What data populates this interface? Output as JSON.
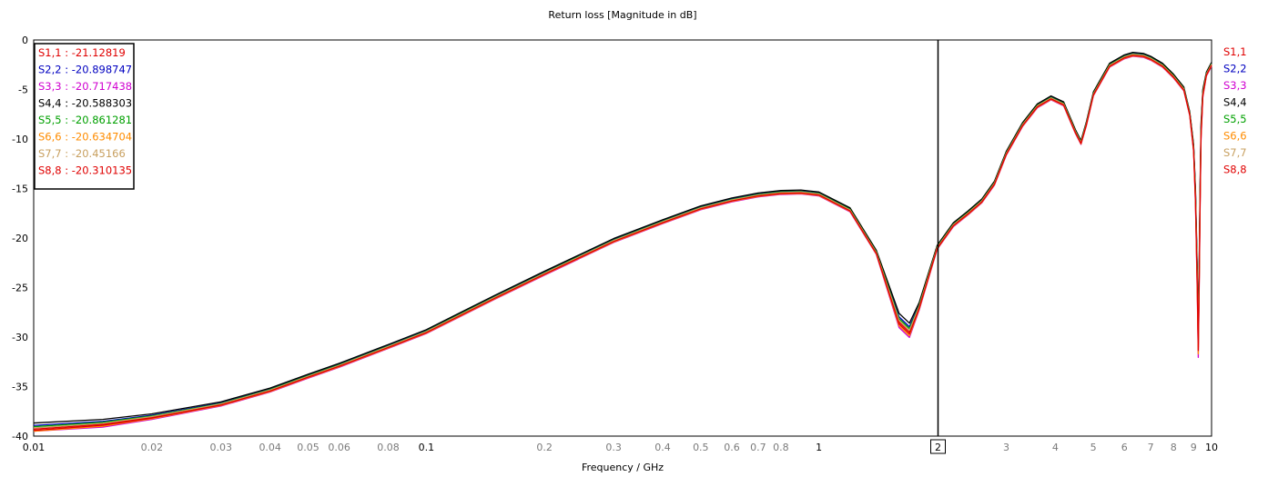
{
  "chart_data": {
    "type": "line",
    "title": "Return loss [Magnitude in dB]",
    "xlabel": "Frequency / GHz",
    "ylabel": "",
    "x_scale": "log",
    "xlim": [
      0.01,
      10
    ],
    "ylim": [
      -40,
      0
    ],
    "grid": true,
    "x_ticks_major": [
      {
        "v": 0.01,
        "label": "0.01"
      },
      {
        "v": 0.1,
        "label": "0.1"
      },
      {
        "v": 1,
        "label": "1"
      },
      {
        "v": 10,
        "label": "10"
      }
    ],
    "x_ticks_minor": [
      {
        "v": 0.02,
        "label": "0.02"
      },
      {
        "v": 0.03,
        "label": "0.03"
      },
      {
        "v": 0.04,
        "label": "0.04"
      },
      {
        "v": 0.05,
        "label": "0.05"
      },
      {
        "v": 0.06,
        "label": "0.06"
      },
      {
        "v": 0.08,
        "label": "0.08"
      },
      {
        "v": 0.2,
        "label": "0.2"
      },
      {
        "v": 0.3,
        "label": "0.3"
      },
      {
        "v": 0.4,
        "label": "0.4"
      },
      {
        "v": 0.5,
        "label": "0.5"
      },
      {
        "v": 0.6,
        "label": "0.6"
      },
      {
        "v": 0.7,
        "label": "0.7"
      },
      {
        "v": 0.8,
        "label": "0.8"
      },
      {
        "v": 3,
        "label": "3"
      },
      {
        "v": 4,
        "label": "4"
      },
      {
        "v": 5,
        "label": "5"
      },
      {
        "v": 6,
        "label": "6"
      },
      {
        "v": 7,
        "label": "7"
      },
      {
        "v": 8,
        "label": "8"
      },
      {
        "v": 9,
        "label": "9"
      }
    ],
    "x_grid_extra": [
      0.07,
      0.09
    ],
    "y_ticks": [
      0,
      -5,
      -10,
      -15,
      -20,
      -25,
      -30,
      -35,
      -40
    ],
    "marker": {
      "x": 2,
      "label": "2"
    },
    "legend_position": "top-left",
    "series": [
      {
        "name": "S1,1",
        "color": "#e00000",
        "marker_value": "-21.12819",
        "offset": 0.0
      },
      {
        "name": "S2,2",
        "color": "#0000c0",
        "marker_value": "-20.898747",
        "offset": 0.15
      },
      {
        "name": "S3,3",
        "color": "#d000d0",
        "marker_value": "-20.717438",
        "offset": -0.15
      },
      {
        "name": "S4,4",
        "color": "#000000",
        "marker_value": "-20.588303",
        "offset": 0.25
      },
      {
        "name": "S5,5",
        "color": "#00a000",
        "marker_value": "-20.861281",
        "offset": 0.1
      },
      {
        "name": "S6,6",
        "color": "#ff8c00",
        "marker_value": "-20.634704",
        "offset": -0.1
      },
      {
        "name": "S7,7",
        "color": "#c8a060",
        "marker_value": "-20.45166",
        "offset": 0.05
      },
      {
        "name": "S8,8",
        "color": "#e00000",
        "marker_value": "-20.310135",
        "offset": -0.05
      }
    ],
    "curve": {
      "x": [
        0.01,
        0.015,
        0.02,
        0.03,
        0.04,
        0.05,
        0.06,
        0.08,
        0.1,
        0.15,
        0.2,
        0.3,
        0.4,
        0.5,
        0.6,
        0.7,
        0.8,
        0.9,
        1.0,
        1.2,
        1.4,
        1.6,
        1.7,
        1.8,
        2.0,
        2.2,
        2.4,
        2.6,
        2.8,
        3.0,
        3.3,
        3.6,
        3.9,
        4.2,
        4.5,
        4.65,
        4.8,
        5.0,
        5.5,
        6.0,
        6.3,
        6.7,
        7.0,
        7.5,
        8.0,
        8.5,
        8.8,
        9.0,
        9.1,
        9.2,
        9.25,
        9.3,
        9.35,
        9.4,
        9.5,
        9.7,
        10.0
      ],
      "y": [
        -39.3,
        -38.8,
        -38.1,
        -36.8,
        -35.4,
        -34.0,
        -32.9,
        -31.0,
        -29.5,
        -26.0,
        -23.6,
        -20.3,
        -18.4,
        -17.0,
        -16.2,
        -15.7,
        -15.45,
        -15.4,
        -15.6,
        -17.2,
        -21.5,
        -28.5,
        -29.5,
        -27.0,
        -21.0,
        -18.7,
        -17.5,
        -16.3,
        -14.5,
        -11.5,
        -8.6,
        -6.7,
        -5.9,
        -6.5,
        -9.3,
        -10.4,
        -8.5,
        -5.5,
        -2.6,
        -1.75,
        -1.5,
        -1.6,
        -1.9,
        -2.6,
        -3.7,
        -5.0,
        -7.5,
        -11.0,
        -16.0,
        -25.0,
        -31.0,
        -24.0,
        -16.0,
        -9.5,
        -5.5,
        -3.5,
        -2.5
      ]
    }
  }
}
